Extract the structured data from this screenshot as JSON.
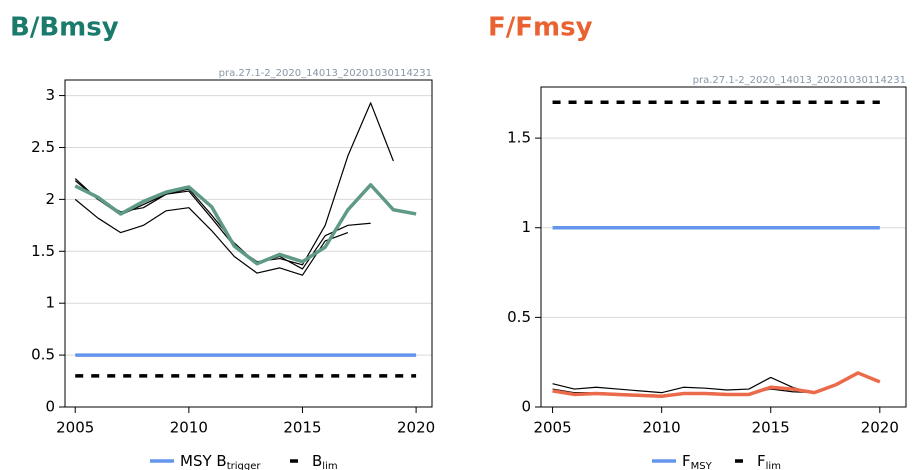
{
  "chart_data": [
    {
      "type": "line",
      "title": "B/Bmsy",
      "title_color": "#1a7a6c",
      "caption": "pra.27.1-2_2020_14013_20201030114231",
      "x": [
        2005,
        2006,
        2007,
        2008,
        2009,
        2010,
        2011,
        2012,
        2013,
        2014,
        2015,
        2016,
        2017,
        2018,
        2019,
        2020
      ],
      "xlim": [
        2004.55,
        2020.7
      ],
      "xticks": [
        2005,
        2010,
        2015,
        2020
      ],
      "ylim": [
        0,
        3.15
      ],
      "yticks": [
        0,
        0.5,
        1,
        1.5,
        2,
        2.5,
        3
      ],
      "grid": true,
      "series": [
        {
          "color": "#000000",
          "width": 1.2,
          "values": [
            2.2,
            2.0,
            1.88,
            1.92,
            2.05,
            2.08,
            1.82,
            1.55,
            1.4,
            1.43,
            1.37,
            1.75,
            2.42,
            2.93,
            2.37,
            null
          ]
        },
        {
          "color": "#000000",
          "width": 1.2,
          "values": [
            2.18,
            2.0,
            1.85,
            1.95,
            2.05,
            2.1,
            1.85,
            1.58,
            1.38,
            1.45,
            1.33,
            1.65,
            1.75,
            1.77,
            null,
            null
          ]
        },
        {
          "color": "#000000",
          "width": 1.2,
          "values": [
            2.0,
            1.82,
            1.68,
            1.75,
            1.89,
            1.92,
            1.7,
            1.45,
            1.29,
            1.34,
            1.27,
            1.6,
            1.68,
            null,
            null,
            null
          ]
        },
        {
          "color": "#5f9a87",
          "width": 3.5,
          "values": [
            2.13,
            2.02,
            1.86,
            1.98,
            2.07,
            2.12,
            1.93,
            1.55,
            1.38,
            1.47,
            1.4,
            1.54,
            1.9,
            2.14,
            1.9,
            1.86
          ]
        }
      ],
      "reference_lines": [
        {
          "name": "MSY B",
          "sub": "trigger",
          "value": 0.5,
          "color": "#6495ed",
          "dashed": false
        },
        {
          "name": "B",
          "sub": "lim",
          "value": 0.3,
          "color": "#000000",
          "dashed": true
        }
      ]
    },
    {
      "type": "line",
      "title": "F/Fmsy",
      "title_color": "#ea6232",
      "caption": "pra.27.1-2_2020_14013_20201030114231",
      "x": [
        2005,
        2006,
        2007,
        2008,
        2009,
        2010,
        2011,
        2012,
        2013,
        2014,
        2015,
        2016,
        2017,
        2018,
        2019,
        2020
      ],
      "xlim": [
        2004.47,
        2021.2
      ],
      "xticks": [
        2005,
        2010,
        2015,
        2020
      ],
      "ylim": [
        0,
        1.785
      ],
      "yticks": [
        0,
        0.5,
        1,
        1.5
      ],
      "grid": true,
      "series": [
        {
          "color": "#000000",
          "width": 1.2,
          "values": [
            0.13,
            0.1,
            0.11,
            0.1,
            0.09,
            0.08,
            0.11,
            0.105,
            0.095,
            0.1,
            0.165,
            0.11,
            0.075,
            0.13,
            null,
            null
          ]
        },
        {
          "color": "#000000",
          "width": 1.2,
          "values": [
            0.1,
            0.08,
            0.08,
            0.075,
            0.07,
            0.065,
            0.08,
            0.08,
            0.075,
            0.075,
            0.1,
            0.085,
            0.08,
            null,
            null,
            null
          ]
        },
        {
          "color": "#ea6a4a",
          "width": 3.5,
          "values": [
            0.09,
            0.07,
            0.075,
            0.07,
            0.065,
            0.06,
            0.075,
            0.075,
            0.07,
            0.07,
            0.11,
            0.1,
            0.08,
            0.125,
            0.19,
            0.14
          ]
        }
      ],
      "reference_lines": [
        {
          "name": "F",
          "sub": "MSY",
          "value": 1.0,
          "color": "#6495ed",
          "dashed": false
        },
        {
          "name": "F",
          "sub": "lim",
          "value": 1.7,
          "color": "#000000",
          "dashed": true
        }
      ]
    }
  ]
}
